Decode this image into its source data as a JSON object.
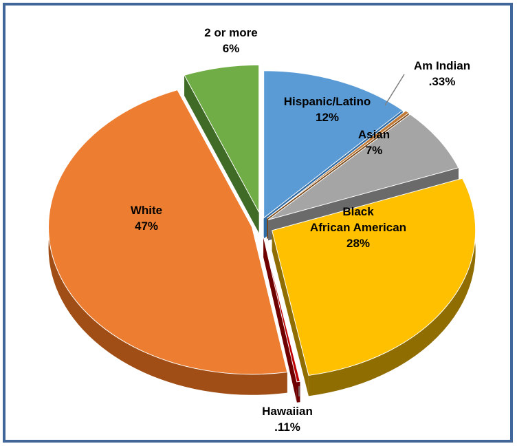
{
  "chart_data": {
    "type": "pie",
    "style": "3d-exploded",
    "title": "",
    "slices": [
      {
        "label": "Hispanic/Latino",
        "value": 12,
        "display": "12%",
        "color": "#5b9bd5",
        "side_color": "#2e6aa3"
      },
      {
        "label": "Am Indian",
        "value": 0.33,
        "display": ".33%",
        "color": "#c07a36",
        "side_color": "#7a4716"
      },
      {
        "label": "Asian",
        "value": 7,
        "display": "7%",
        "color": "#a5a5a5",
        "side_color": "#6a6a6a"
      },
      {
        "label": "Black African American",
        "label_lines": [
          "Black",
          "African American"
        ],
        "value": 28,
        "display": "28%",
        "color": "#ffc000",
        "side_color": "#8f6d00"
      },
      {
        "label": "Hawaiian",
        "value": 0.11,
        "display": ".11%",
        "color": "#c00000",
        "side_color": "#6e0000"
      },
      {
        "label": "White",
        "value": 47,
        "display": "47%",
        "color": "#ed7d31",
        "side_color": "#a14e16"
      },
      {
        "label": "2 or more",
        "value": 6,
        "display": "6%",
        "color": "#70ad47",
        "side_color": "#3f6b27"
      }
    ],
    "legend": "none",
    "data_labels": "on-slice-and-callouts"
  }
}
